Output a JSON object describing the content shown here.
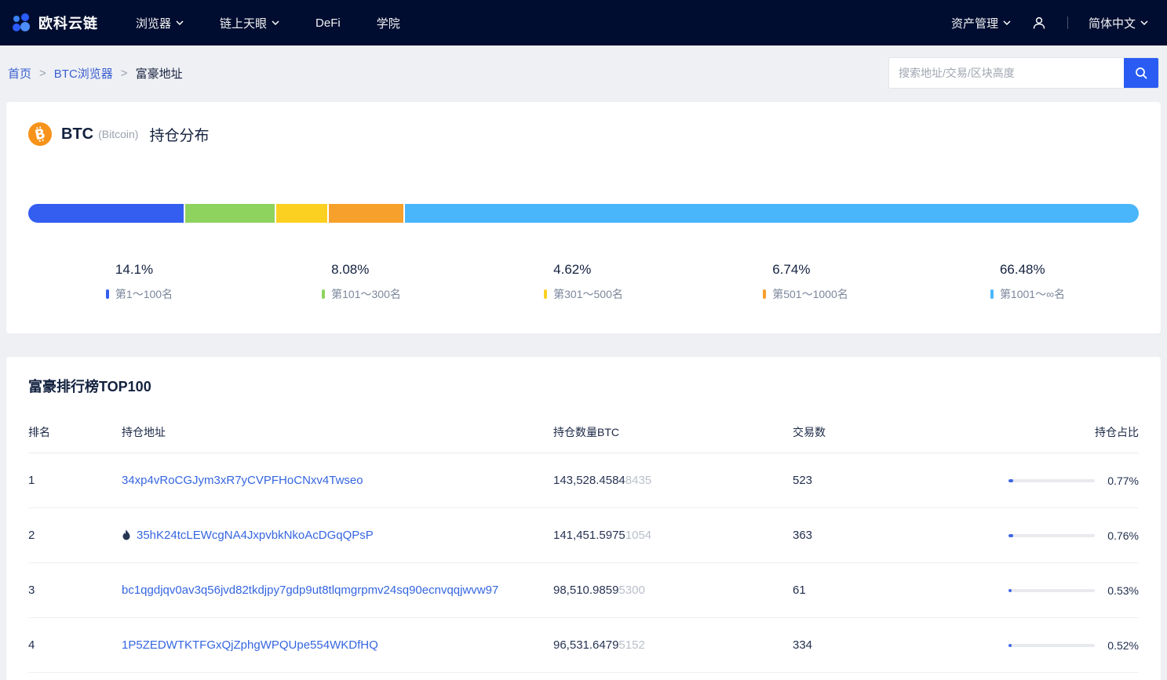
{
  "navbar": {
    "logo_text": "欧科云链",
    "items": [
      {
        "label": "浏览器",
        "has_dropdown": true
      },
      {
        "label": "链上天眼",
        "has_dropdown": true
      },
      {
        "label": "DeFi",
        "has_dropdown": false
      },
      {
        "label": "学院",
        "has_dropdown": false
      }
    ],
    "asset_management": "资产管理",
    "language": "简体中文"
  },
  "breadcrumb": {
    "home": "首页",
    "explorer": "BTC浏览器",
    "current": "富豪地址",
    "separator": ">"
  },
  "search": {
    "placeholder": "搜索地址/交易/区块高度"
  },
  "holdings": {
    "coin": "BTC",
    "coin_name": "(Bitcoin)",
    "title": "持仓分布"
  },
  "chart_data": {
    "type": "bar",
    "title": "BTC 持仓分布",
    "note": "stacked horizontal distribution bar, percents sum to 100",
    "segments": [
      {
        "label": "第1～100名",
        "percent": 14.1,
        "percent_label": "14.1%",
        "color": "#335ef0"
      },
      {
        "label": "第101～300名",
        "percent": 8.08,
        "percent_label": "8.08%",
        "color": "#8fd35f"
      },
      {
        "label": "第301～500名",
        "percent": 4.62,
        "percent_label": "4.62%",
        "color": "#fcd021"
      },
      {
        "label": "第501～1000名",
        "percent": 6.74,
        "percent_label": "6.74%",
        "color": "#f7a02b"
      },
      {
        "label": "第1001～∞名",
        "percent": 66.48,
        "percent_label": "66.48%",
        "color": "#49b6fb"
      }
    ]
  },
  "rich_list": {
    "title": "富豪排行榜TOP100",
    "columns": {
      "rank": "排名",
      "address": "持仓地址",
      "amount": "持仓数量BTC",
      "tx": "交易数",
      "ratio": "持仓占比"
    },
    "rows": [
      {
        "rank": "1",
        "hot": false,
        "address": "34xp4vRoCGJym3xR7yCVPFHoCNxv4Twseo",
        "amount_main": "143,528.4584",
        "amount_dim": "8435",
        "tx": "523",
        "ratio": "0.77%"
      },
      {
        "rank": "2",
        "hot": true,
        "address": "35hK24tcLEWcgNA4JxpvbkNkoAcDGqQPsP",
        "amount_main": "141,451.5975",
        "amount_dim": "1054",
        "tx": "363",
        "ratio": "0.76%"
      },
      {
        "rank": "3",
        "hot": false,
        "address": "bc1qgdjqv0av3q56jvd82tkdjpy7gdp9ut8tlqmgrpmv24sq90ecnvqqjwvw97",
        "amount_main": "98,510.9859",
        "amount_dim": "5300",
        "tx": "61",
        "ratio": "0.53%"
      },
      {
        "rank": "4",
        "hot": false,
        "address": "1P5ZEDWTKTFGxQjZphgWPQUpe554WKDfHQ",
        "amount_main": "96,531.6479",
        "amount_dim": "5152",
        "tx": "334",
        "ratio": "0.52%"
      }
    ]
  }
}
